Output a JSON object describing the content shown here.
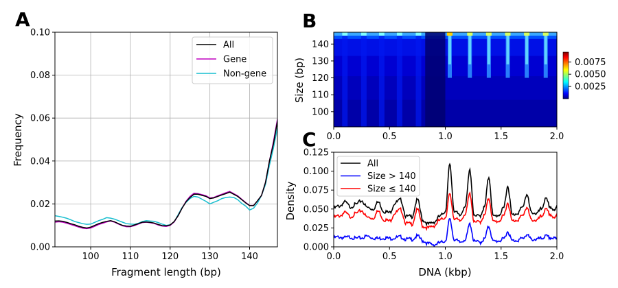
{
  "panels": {
    "a": "A",
    "b": "B",
    "c": "C"
  },
  "chart_data": [
    {
      "panel": "A",
      "type": "line",
      "xlabel": "Fragment length (bp)",
      "ylabel": "Frequency",
      "xlim": [
        91,
        147
      ],
      "ylim": [
        0,
        0.1
      ],
      "xticks": [
        "100",
        "110",
        "120",
        "130",
        "140"
      ],
      "xtick_values": [
        100,
        110,
        120,
        130,
        140
      ],
      "yticks": [
        "0.00",
        "0.02",
        "0.04",
        "0.06",
        "0.08",
        "0.10"
      ],
      "ytick_values": [
        0,
        0.02,
        0.04,
        0.06,
        0.08,
        0.1
      ],
      "grid": true,
      "legend_position": "top-right",
      "x": [
        91,
        92,
        93,
        94,
        95,
        96,
        97,
        98,
        99,
        100,
        101,
        102,
        103,
        104,
        105,
        106,
        107,
        108,
        109,
        110,
        111,
        112,
        113,
        114,
        115,
        116,
        117,
        118,
        119,
        120,
        121,
        122,
        123,
        124,
        125,
        126,
        127,
        128,
        129,
        130,
        131,
        132,
        133,
        134,
        135,
        136,
        137,
        138,
        139,
        140,
        141,
        142,
        143,
        144,
        145,
        146,
        147
      ],
      "series": [
        {
          "name": "All",
          "color": "#000000",
          "values": [
            0.012,
            0.0121,
            0.0119,
            0.0114,
            0.0108,
            0.0103,
            0.0096,
            0.0091,
            0.0088,
            0.0092,
            0.01,
            0.0108,
            0.0114,
            0.0119,
            0.0122,
            0.0117,
            0.0108,
            0.01,
            0.0097,
            0.0096,
            0.0102,
            0.0108,
            0.0115,
            0.0116,
            0.0114,
            0.0111,
            0.0104,
            0.0099,
            0.0098,
            0.0102,
            0.0118,
            0.0145,
            0.018,
            0.021,
            0.023,
            0.0245,
            0.0245,
            0.024,
            0.0235,
            0.0225,
            0.0228,
            0.0235,
            0.0242,
            0.0248,
            0.0255,
            0.0245,
            0.0235,
            0.022,
            0.0205,
            0.0192,
            0.0192,
            0.0215,
            0.024,
            0.03,
            0.04,
            0.048,
            0.0585
          ]
        },
        {
          "name": "Gene",
          "color": "#bf00bf",
          "values": [
            0.0115,
            0.0117,
            0.0115,
            0.011,
            0.0104,
            0.0098,
            0.0092,
            0.0087,
            0.0085,
            0.0088,
            0.0096,
            0.0104,
            0.011,
            0.0116,
            0.012,
            0.0115,
            0.0106,
            0.0098,
            0.0094,
            0.0094,
            0.0099,
            0.0106,
            0.0113,
            0.0115,
            0.0112,
            0.0109,
            0.0102,
            0.0097,
            0.0095,
            0.01,
            0.0116,
            0.0145,
            0.018,
            0.0212,
            0.0235,
            0.025,
            0.0248,
            0.0243,
            0.0238,
            0.0228,
            0.023,
            0.0238,
            0.0245,
            0.0252,
            0.0258,
            0.0248,
            0.0238,
            0.0222,
            0.0207,
            0.0193,
            0.0193,
            0.0215,
            0.024,
            0.03,
            0.04,
            0.049,
            0.0595
          ]
        },
        {
          "name": "Non-gene",
          "color": "#17becf",
          "values": [
            0.0145,
            0.0142,
            0.0138,
            0.0133,
            0.0126,
            0.0118,
            0.0113,
            0.0108,
            0.0105,
            0.0106,
            0.0114,
            0.0122,
            0.0128,
            0.0136,
            0.0134,
            0.0129,
            0.0122,
            0.0115,
            0.0108,
            0.0106,
            0.0105,
            0.011,
            0.0118,
            0.0122,
            0.012,
            0.0119,
            0.0113,
            0.0106,
            0.01,
            0.0103,
            0.0116,
            0.015,
            0.0183,
            0.0207,
            0.0225,
            0.0235,
            0.0232,
            0.0222,
            0.0212,
            0.02,
            0.0208,
            0.0215,
            0.0225,
            0.023,
            0.0232,
            0.023,
            0.022,
            0.0203,
            0.019,
            0.0172,
            0.018,
            0.0205,
            0.024,
            0.029,
            0.038,
            0.046,
            0.0555
          ]
        }
      ]
    },
    {
      "panel": "B",
      "type": "heatmap",
      "ylabel": "Size (bp)",
      "xlim": [
        0,
        2.0
      ],
      "ylim": [
        91,
        147
      ],
      "xticks": [
        "0.0",
        "0.5",
        "1.0",
        "1.5",
        "2.0"
      ],
      "xtick_values": [
        0,
        0.5,
        1.0,
        1.5,
        2.0
      ],
      "yticks": [
        "100",
        "110",
        "120",
        "130",
        "140"
      ],
      "ytick_values": [
        100,
        110,
        120,
        130,
        140
      ],
      "colorbar_range": [
        0,
        0.0095
      ],
      "colorbar_ticks": [
        "0.0025",
        "0.0050",
        "0.0075"
      ],
      "colorbar_tick_values": [
        0.0025,
        0.005,
        0.0075
      ],
      "colormap": "jet",
      "peak_positions_kbp": [
        1.04,
        1.22,
        1.39,
        1.56,
        1.73,
        1.9
      ]
    },
    {
      "panel": "C",
      "type": "line",
      "xlabel": "DNA (kbp)",
      "ylabel": "Density",
      "xlim": [
        0,
        2.0
      ],
      "ylim": [
        0,
        0.125
      ],
      "xticks": [
        "0.0",
        "0.5",
        "1.0",
        "1.5",
        "2.0"
      ],
      "xtick_values": [
        0,
        0.5,
        1.0,
        1.5,
        2.0
      ],
      "yticks": [
        "0.000",
        "0.025",
        "0.050",
        "0.075",
        "0.100",
        "0.125"
      ],
      "ytick_values": [
        0,
        0.025,
        0.05,
        0.075,
        0.1,
        0.125
      ],
      "legend_position": "top-left",
      "x": [
        0.0,
        0.05,
        0.1,
        0.15,
        0.2,
        0.25,
        0.3,
        0.35,
        0.4,
        0.45,
        0.5,
        0.55,
        0.6,
        0.65,
        0.7,
        0.75,
        0.8,
        0.85,
        0.9,
        0.95,
        1.0,
        1.04,
        1.08,
        1.13,
        1.18,
        1.22,
        1.26,
        1.31,
        1.35,
        1.39,
        1.43,
        1.48,
        1.52,
        1.56,
        1.6,
        1.65,
        1.69,
        1.73,
        1.77,
        1.82,
        1.86,
        1.9,
        1.94,
        1.98,
        2.0
      ],
      "series": [
        {
          "name": "All",
          "color": "#000000",
          "values": [
            0.051,
            0.054,
            0.059,
            0.053,
            0.056,
            0.061,
            0.052,
            0.05,
            0.059,
            0.047,
            0.045,
            0.058,
            0.062,
            0.04,
            0.04,
            0.062,
            0.035,
            0.03,
            0.033,
            0.04,
            0.047,
            0.108,
            0.048,
            0.041,
            0.055,
            0.101,
            0.04,
            0.041,
            0.052,
            0.092,
            0.04,
            0.042,
            0.05,
            0.08,
            0.042,
            0.045,
            0.052,
            0.069,
            0.046,
            0.044,
            0.05,
            0.063,
            0.053,
            0.047,
            0.055
          ]
        },
        {
          "name": "Size > 140",
          "label_html": "Size > 140",
          "color": "#0000ff",
          "values": [
            0.012,
            0.013,
            0.012,
            0.013,
            0.011,
            0.012,
            0.014,
            0.012,
            0.011,
            0.012,
            0.011,
            0.012,
            0.013,
            0.01,
            0.01,
            0.014,
            0.008,
            0.004,
            0.003,
            0.005,
            0.008,
            0.036,
            0.01,
            0.006,
            0.01,
            0.03,
            0.007,
            0.006,
            0.01,
            0.027,
            0.007,
            0.008,
            0.01,
            0.02,
            0.008,
            0.009,
            0.011,
            0.016,
            0.01,
            0.01,
            0.011,
            0.014,
            0.012,
            0.011,
            0.012
          ]
        },
        {
          "name": "Size ≤ 140",
          "color": "#ff0000",
          "values": [
            0.039,
            0.041,
            0.045,
            0.04,
            0.044,
            0.048,
            0.039,
            0.038,
            0.047,
            0.036,
            0.034,
            0.045,
            0.049,
            0.031,
            0.03,
            0.049,
            0.027,
            0.025,
            0.028,
            0.035,
            0.039,
            0.069,
            0.038,
            0.034,
            0.044,
            0.07,
            0.032,
            0.033,
            0.041,
            0.064,
            0.033,
            0.034,
            0.04,
            0.058,
            0.034,
            0.036,
            0.041,
            0.052,
            0.036,
            0.035,
            0.04,
            0.049,
            0.043,
            0.037,
            0.044
          ]
        }
      ]
    }
  ]
}
